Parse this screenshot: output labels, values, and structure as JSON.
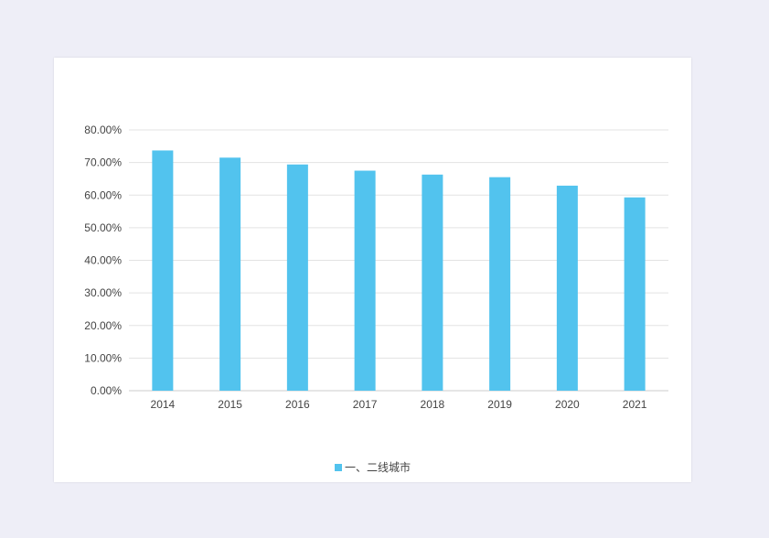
{
  "chart_data": {
    "type": "bar",
    "categories": [
      "2014",
      "2015",
      "2016",
      "2017",
      "2018",
      "2019",
      "2020",
      "2021"
    ],
    "series": [
      {
        "name": "一、二线城市",
        "values": [
          73.7,
          71.5,
          69.4,
          67.5,
          66.3,
          65.5,
          62.9,
          59.3
        ],
        "color": "#52c3ee"
      }
    ],
    "ylim": [
      0,
      80
    ],
    "yticks": [
      "0.00%",
      "10.00%",
      "20.00%",
      "30.00%",
      "40.00%",
      "50.00%",
      "60.00%",
      "70.00%",
      "80.00%"
    ],
    "grid": true,
    "legend": "bottom-center"
  }
}
